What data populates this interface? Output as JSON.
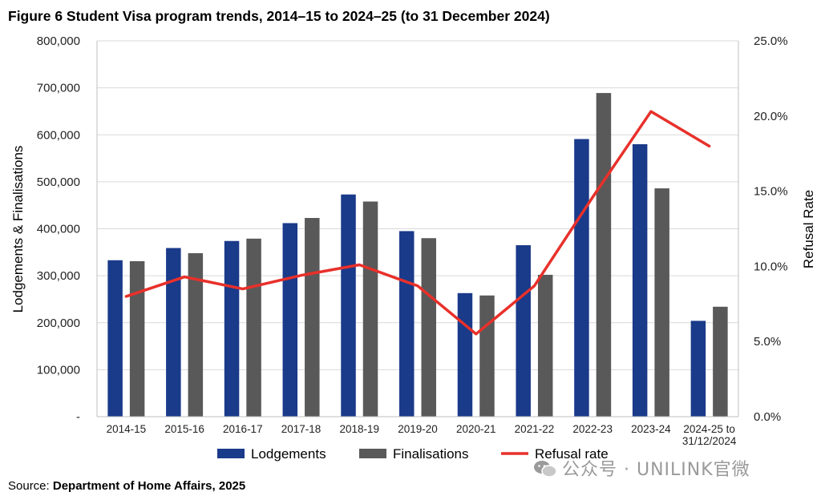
{
  "title": "Figure 6 Student Visa program trends, 2014–15 to 2024–25 (to 31 December 2024)",
  "source": {
    "prefix": "Source: ",
    "text": "Department of Home Affairs, 2025"
  },
  "watermark": {
    "icon": "wechat-icon",
    "text": "公众号 · UNILINK官微"
  },
  "chart_data": {
    "type": "bar",
    "categories": [
      "2014-15",
      "2015-16",
      "2016-17",
      "2017-18",
      "2018-19",
      "2019-20",
      "2020-21",
      "2021-22",
      "2022-23",
      "2023-24",
      "2024-25 to 31/12/2024"
    ],
    "category_lines": [
      [
        "2014-15"
      ],
      [
        "2015-16"
      ],
      [
        "2016-17"
      ],
      [
        "2017-18"
      ],
      [
        "2018-19"
      ],
      [
        "2019-20"
      ],
      [
        "2020-21"
      ],
      [
        "2021-22"
      ],
      [
        "2022-23"
      ],
      [
        "2023-24"
      ],
      [
        "2024-25 to",
        "31/12/2024"
      ]
    ],
    "series": [
      {
        "name": "Lodgements",
        "type": "bar",
        "axis": "left",
        "color": "#1a3a8a",
        "values": [
          333000,
          359000,
          374000,
          412000,
          473000,
          395000,
          263000,
          365000,
          591000,
          580000,
          204000
        ]
      },
      {
        "name": "Finalisations",
        "type": "bar",
        "axis": "left",
        "color": "#595959",
        "values": [
          331000,
          348000,
          379000,
          423000,
          458000,
          380000,
          258000,
          302000,
          689000,
          486000,
          234000
        ]
      },
      {
        "name": "Refusal rate",
        "type": "line",
        "axis": "right",
        "color": "#e8302a",
        "values": [
          8.0,
          9.3,
          8.5,
          9.4,
          10.1,
          8.7,
          5.5,
          8.7,
          14.6,
          20.3,
          18.0
        ]
      }
    ],
    "ylabel": "Lodgements & Finalisations",
    "y2label": "Refusal Rate",
    "ylim": [
      0,
      800000
    ],
    "y2lim": [
      0,
      25
    ],
    "yticks": [
      "-",
      "100,000",
      "200,000",
      "300,000",
      "400,000",
      "500,000",
      "600,000",
      "700,000",
      "800,000"
    ],
    "y2ticks": [
      "0.0%",
      "5.0%",
      "10.0%",
      "15.0%",
      "20.0%",
      "25.0%"
    ],
    "grid": true,
    "legend": "bottom"
  }
}
